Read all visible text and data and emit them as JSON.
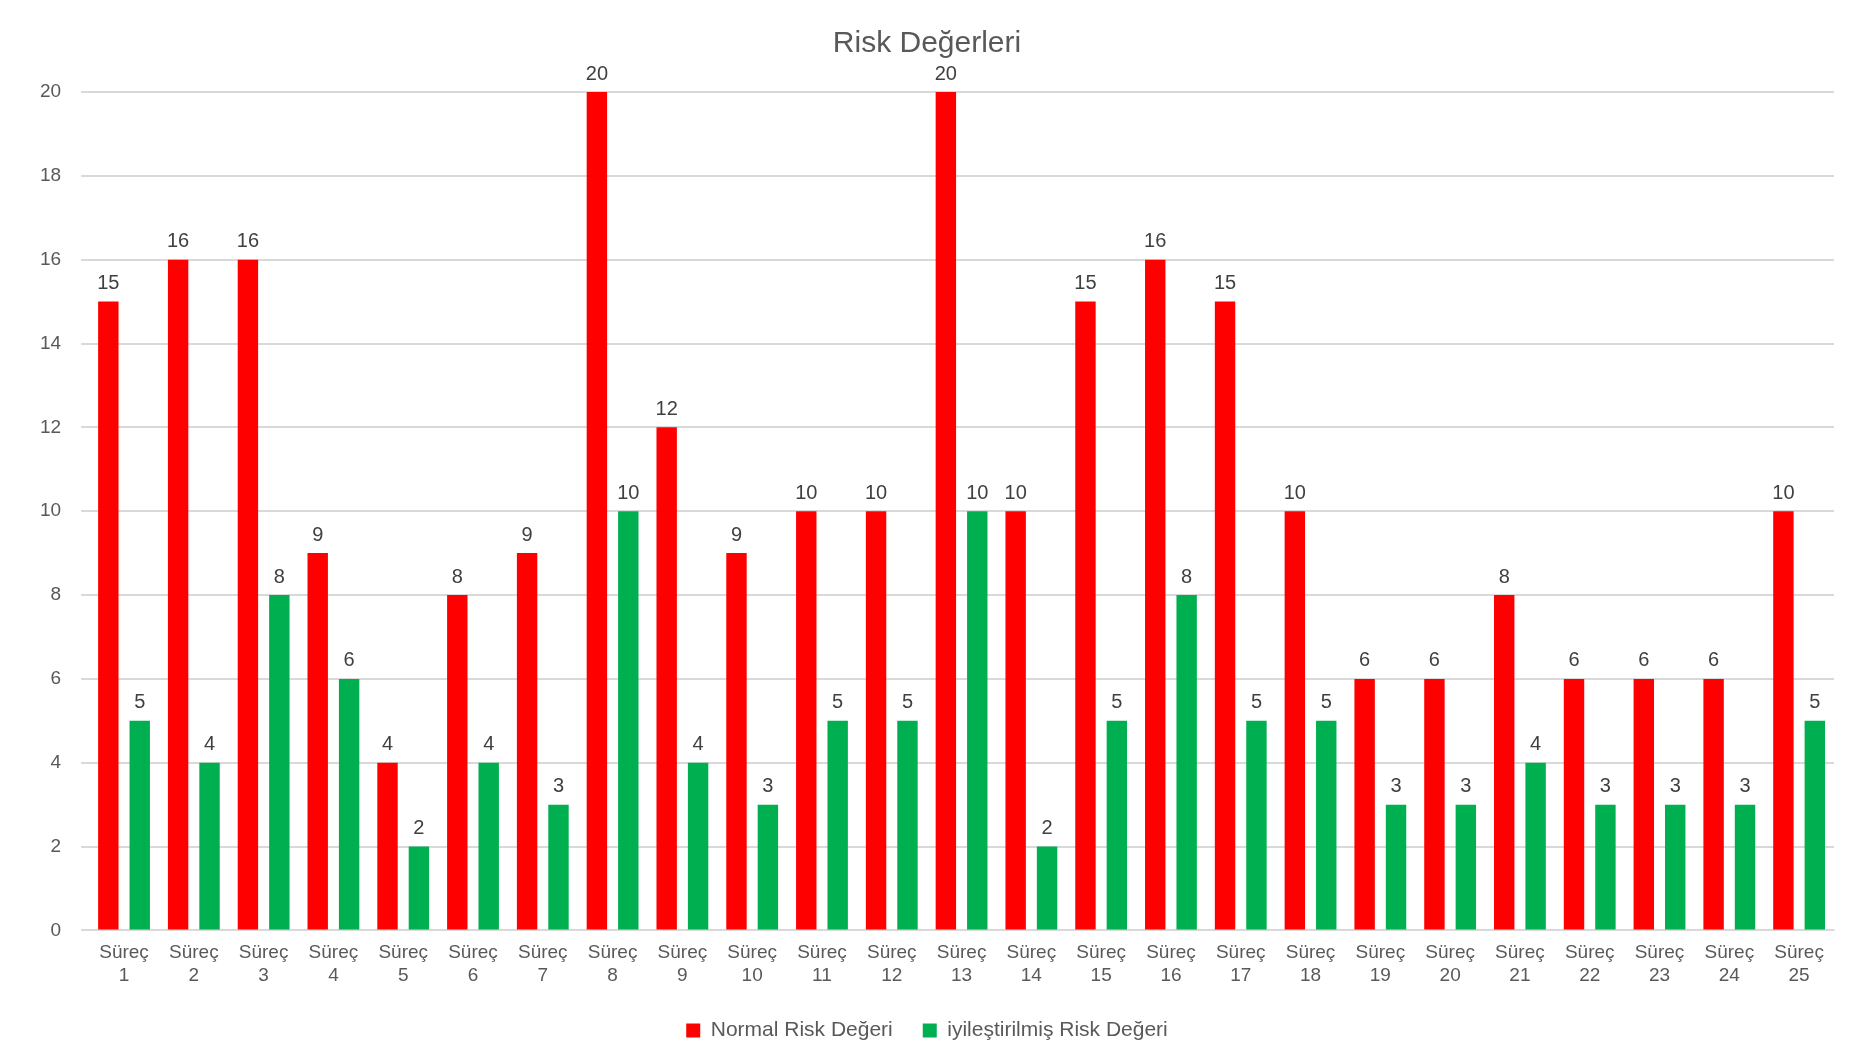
{
  "chart_data": {
    "type": "bar",
    "title": "Risk Değerleri",
    "categories": [
      "Süreç 1",
      "Süreç 2",
      "Süreç 3",
      "Süreç 4",
      "Süreç 5",
      "Süreç 6",
      "Süreç 7",
      "Süreç 8",
      "Süreç 9",
      "Süreç 10",
      "Süreç 11",
      "Süreç 12",
      "Süreç 13",
      "Süreç 14",
      "Süreç 15",
      "Süreç 16",
      "Süreç 17",
      "Süreç 18",
      "Süreç 19",
      "Süreç 20",
      "Süreç 21",
      "Süreç 22",
      "Süreç 23",
      "Süreç 24",
      "Süreç 25"
    ],
    "series": [
      {
        "name": "Normal Risk Değeri",
        "color": "#ff0000",
        "values": [
          15,
          16,
          16,
          9,
          4,
          8,
          9,
          20,
          12,
          9,
          10,
          10,
          20,
          10,
          15,
          16,
          15,
          10,
          6,
          6,
          8,
          6,
          6,
          6,
          10
        ]
      },
      {
        "name": "iyileştirilmiş Risk Değeri",
        "color": "#00b050",
        "values": [
          5,
          4,
          8,
          6,
          2,
          4,
          3,
          10,
          4,
          3,
          5,
          5,
          10,
          2,
          5,
          8,
          5,
          5,
          3,
          3,
          4,
          3,
          3,
          3,
          5
        ]
      }
    ],
    "ylim": [
      0,
      20
    ],
    "yticks": [
      0,
      2,
      4,
      6,
      8,
      10,
      12,
      14,
      16,
      18,
      20
    ],
    "grid": "y",
    "legend": "bottom",
    "data_labels": true
  }
}
